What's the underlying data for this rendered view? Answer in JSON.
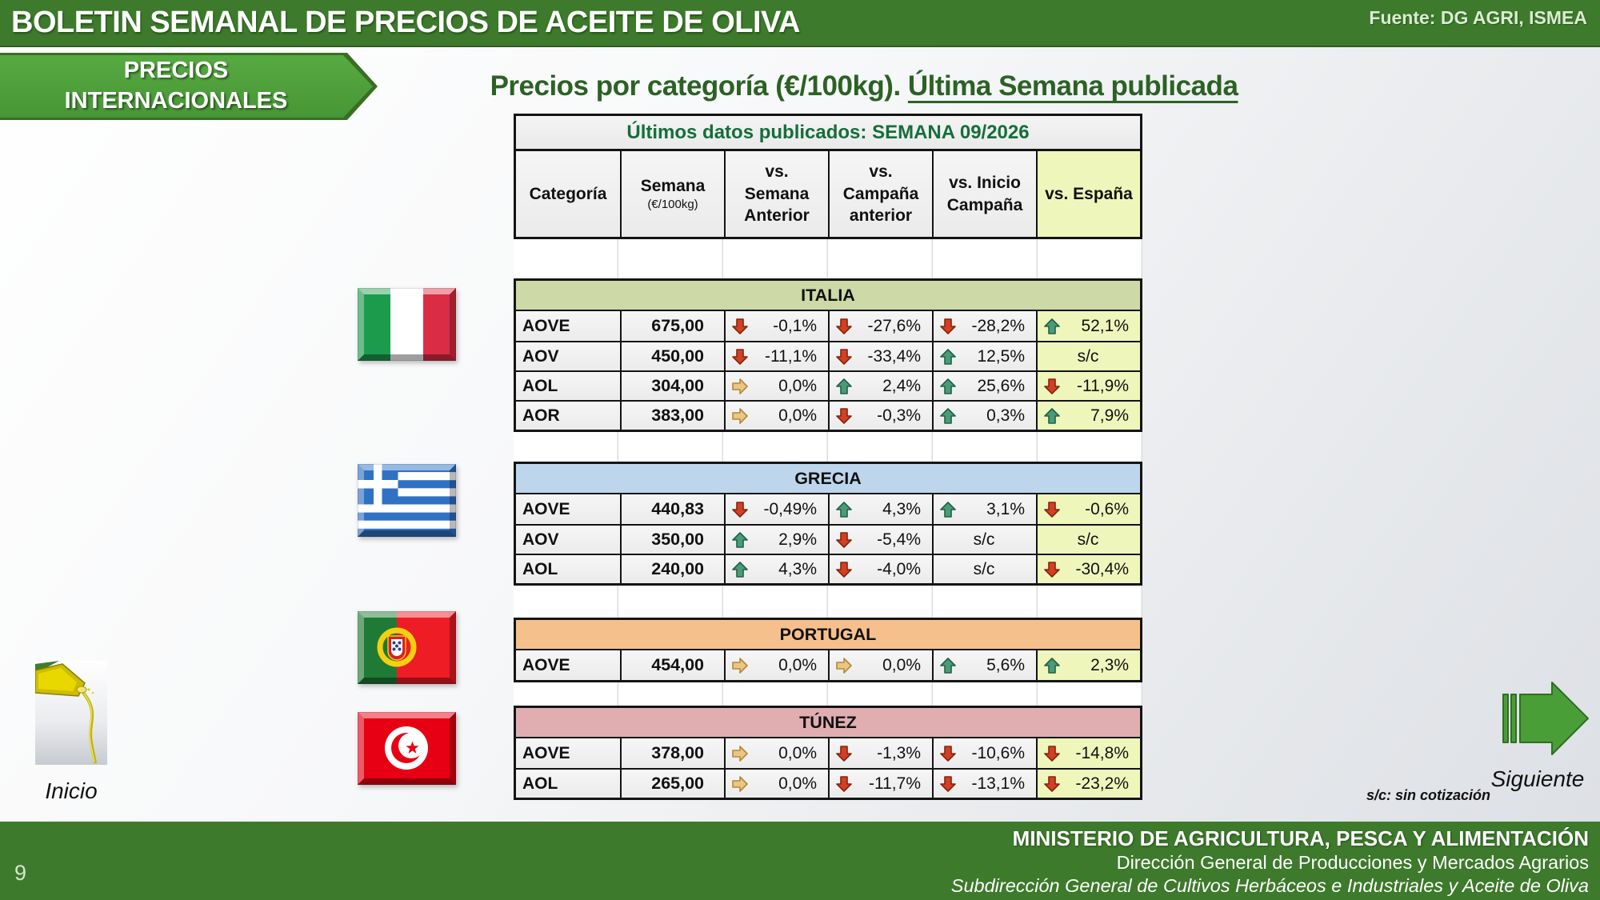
{
  "header": {
    "title": "BOLETIN SEMANAL DE PRECIOS DE ACEITE DE OLIVA",
    "source": "Fuente: DG AGRI, ISMEA"
  },
  "banner": {
    "label": "PRECIOS\nINTERNACIONALES"
  },
  "page_title": {
    "prefix": "Precios por categoría (€/100kg). ",
    "underlined": "Última Semana publicada"
  },
  "table": {
    "published": "Últimos datos publicados: SEMANA 09/2026",
    "columns": {
      "categoria": "Categoría",
      "semana": "Semana",
      "semana_sub": "(€/100kg)",
      "vs_semana": "vs.\nSemana\nAnterior",
      "vs_campana": "vs.\nCampaña\nanterior",
      "vs_inicio": "vs. Inicio\nCampaña",
      "vs_espana": "vs. España"
    },
    "countries": [
      {
        "name": "ITALIA",
        "header_color": "#cdd9a6",
        "flag_icon": "flag-italy",
        "rows": [
          {
            "cat": "AOVE",
            "price": "675,00",
            "cells": [
              {
                "dir": "down",
                "val": "-0,1%"
              },
              {
                "dir": "down",
                "val": "-27,6%"
              },
              {
                "dir": "down",
                "val": "-28,2%"
              },
              {
                "dir": "up",
                "val": "52,1%"
              }
            ]
          },
          {
            "cat": "AOV",
            "price": "450,00",
            "cells": [
              {
                "dir": "down",
                "val": "-11,1%"
              },
              {
                "dir": "down",
                "val": "-33,4%"
              },
              {
                "dir": "up",
                "val": "12,5%"
              },
              {
                "dir": "none",
                "val": "s/c"
              }
            ]
          },
          {
            "cat": "AOL",
            "price": "304,00",
            "cells": [
              {
                "dir": "flat",
                "val": "0,0%"
              },
              {
                "dir": "up",
                "val": "2,4%"
              },
              {
                "dir": "up",
                "val": "25,6%"
              },
              {
                "dir": "down",
                "val": "-11,9%"
              }
            ]
          },
          {
            "cat": "AOR",
            "price": "383,00",
            "cells": [
              {
                "dir": "flat",
                "val": "0,0%"
              },
              {
                "dir": "down",
                "val": "-0,3%"
              },
              {
                "dir": "up",
                "val": "0,3%"
              },
              {
                "dir": "up",
                "val": "7,9%"
              }
            ]
          }
        ]
      },
      {
        "name": "GRECIA",
        "header_color": "#bdd6ec",
        "flag_icon": "flag-greece",
        "rows": [
          {
            "cat": "AOVE",
            "price": "440,83",
            "cells": [
              {
                "dir": "down",
                "val": "-0,49%"
              },
              {
                "dir": "up",
                "val": "4,3%"
              },
              {
                "dir": "up",
                "val": "3,1%"
              },
              {
                "dir": "down",
                "val": "-0,6%"
              }
            ]
          },
          {
            "cat": "AOV",
            "price": "350,00",
            "cells": [
              {
                "dir": "up",
                "val": "2,9%"
              },
              {
                "dir": "down",
                "val": "-5,4%"
              },
              {
                "dir": "none",
                "val": "s/c"
              },
              {
                "dir": "none",
                "val": "s/c"
              }
            ]
          },
          {
            "cat": "AOL",
            "price": "240,00",
            "cells": [
              {
                "dir": "up",
                "val": "4,3%"
              },
              {
                "dir": "down",
                "val": "-4,0%"
              },
              {
                "dir": "none",
                "val": "s/c"
              },
              {
                "dir": "down",
                "val": "-30,4%"
              }
            ]
          }
        ]
      },
      {
        "name": "PORTUGAL",
        "header_color": "#f6c08c",
        "flag_icon": "flag-portugal",
        "rows": [
          {
            "cat": "AOVE",
            "price": "454,00",
            "cells": [
              {
                "dir": "flat",
                "val": "0,0%"
              },
              {
                "dir": "flat",
                "val": "0,0%"
              },
              {
                "dir": "up",
                "val": "5,6%"
              },
              {
                "dir": "up",
                "val": "2,3%"
              }
            ]
          }
        ]
      },
      {
        "name": "TÚNEZ",
        "header_color": "#e0aeb1",
        "flag_icon": "flag-tunisia",
        "rows": [
          {
            "cat": "AOVE",
            "price": "378,00",
            "cells": [
              {
                "dir": "flat",
                "val": "0,0%"
              },
              {
                "dir": "down",
                "val": "-1,3%"
              },
              {
                "dir": "down",
                "val": "-10,6%"
              },
              {
                "dir": "down",
                "val": "-14,8%"
              }
            ]
          },
          {
            "cat": "AOL",
            "price": "265,00",
            "cells": [
              {
                "dir": "flat",
                "val": "0,0%"
              },
              {
                "dir": "down",
                "val": "-11,7%"
              },
              {
                "dir": "down",
                "val": "-13,1%"
              },
              {
                "dir": "down",
                "val": "-23,2%"
              }
            ]
          }
        ]
      }
    ]
  },
  "nav": {
    "inicio": "Inicio",
    "siguiente": "Siguiente",
    "footnote": "s/c: sin cotización"
  },
  "footer": {
    "line1": "MINISTERIO DE AGRICULTURA, PESCA Y ALIMENTACIÓN",
    "line2": "Dirección General de Producciones y Mercados Agrarios",
    "line3": "Subdirección General de Cultivos Herbáceos e Industriales y Aceite de Oliva",
    "page": "9"
  },
  "colors": {
    "accent_green": "#3d7a2b",
    "banner_green": "#479636",
    "title_green": "#2b6224",
    "published_green": "#156e3a",
    "espana_col": "#eff6bb",
    "arrows": {
      "up": {
        "fill": "#4a9c77",
        "stroke": "#206049"
      },
      "down": {
        "fill": "#d24023",
        "stroke": "#85220e"
      },
      "flat": {
        "fill": "#eac584",
        "stroke": "#b5873b"
      }
    }
  }
}
